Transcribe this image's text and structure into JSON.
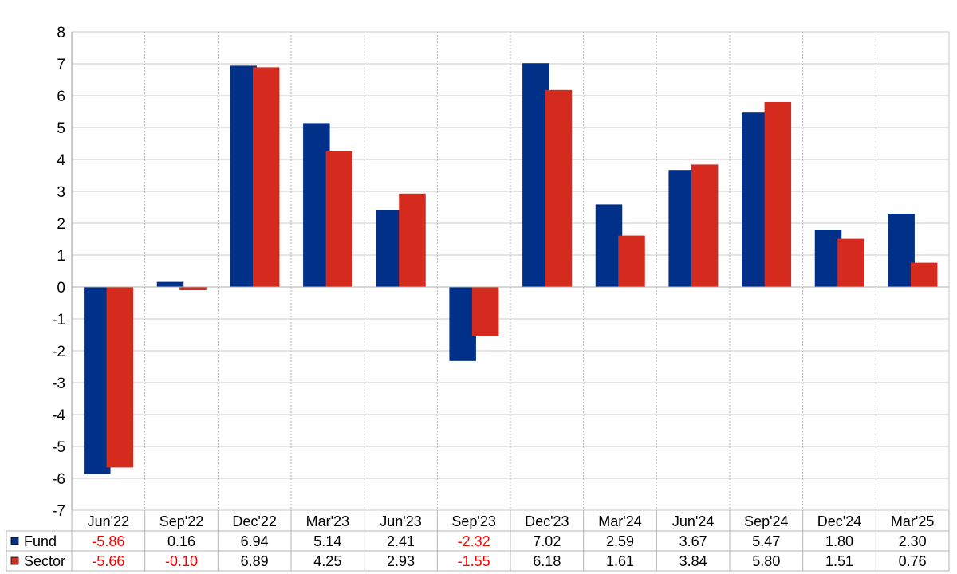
{
  "chart_data": {
    "type": "bar",
    "categories": [
      "Jun'22",
      "Sep'22",
      "Dec'22",
      "Mar'23",
      "Jun'23",
      "Sep'23",
      "Dec'23",
      "Mar'24",
      "Jun'24",
      "Sep'24",
      "Dec'24",
      "Mar'25"
    ],
    "series": [
      {
        "name": "Fund",
        "color": "#003087",
        "values": [
          -5.86,
          0.16,
          6.94,
          5.14,
          2.41,
          -2.32,
          7.02,
          2.59,
          3.67,
          5.47,
          1.8,
          2.3
        ],
        "labels": [
          "-5.86",
          "0.16",
          "6.94",
          "5.14",
          "2.41",
          "-2.32",
          "7.02",
          "2.59",
          "3.67",
          "5.47",
          "1.80",
          "2.30"
        ]
      },
      {
        "name": "Sector",
        "color": "#d52b1e",
        "values": [
          -5.66,
          -0.1,
          6.89,
          4.25,
          2.93,
          -1.55,
          6.18,
          1.61,
          3.84,
          5.8,
          1.51,
          0.76
        ],
        "labels": [
          "-5.66",
          "-0.10",
          "6.89",
          "4.25",
          "2.93",
          "-1.55",
          "6.18",
          "1.61",
          "3.84",
          "5.80",
          "1.51",
          "0.76"
        ]
      }
    ],
    "yticks": [
      "8",
      "7",
      "6",
      "5",
      "4",
      "3",
      "2",
      "1",
      "0",
      "-1",
      "-2",
      "-3",
      "-4",
      "-5",
      "-6",
      "-7"
    ],
    "ylim": [
      -7,
      8
    ],
    "grid": true,
    "legend": "data-table-bottom",
    "negative_color": "#ff0000"
  }
}
